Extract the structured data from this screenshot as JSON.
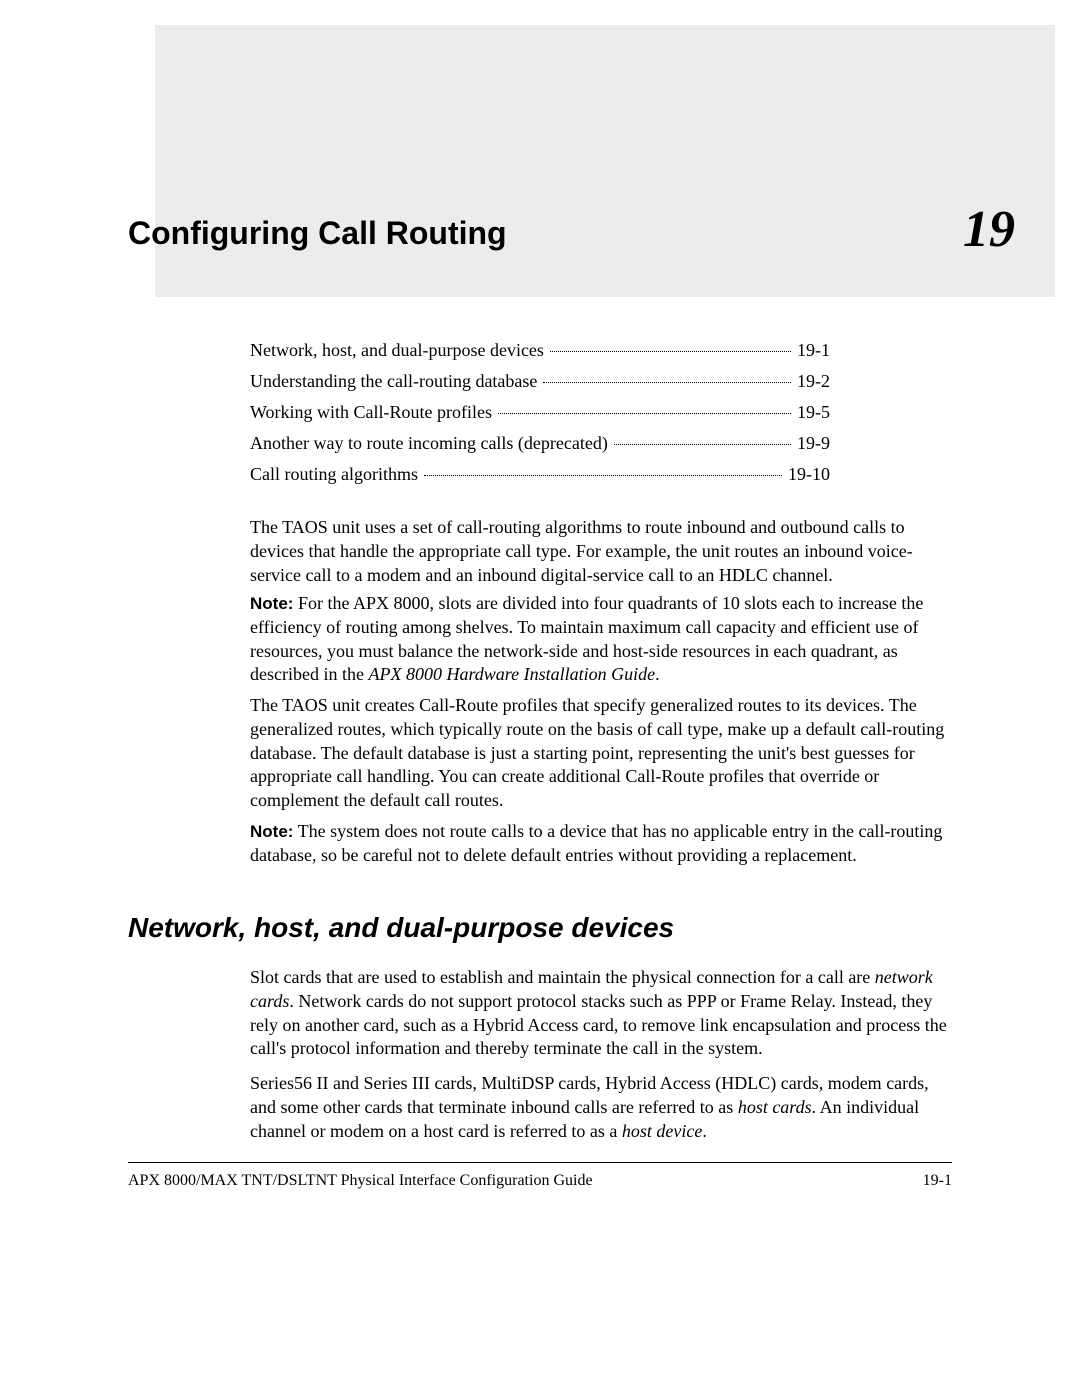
{
  "chapter": {
    "title": "Configuring Call Routing",
    "number": "19"
  },
  "toc": [
    {
      "label": "Network, host, and dual-purpose devices",
      "page": "19-1"
    },
    {
      "label": "Understanding the call-routing database",
      "page": "19-2"
    },
    {
      "label": "Working with Call-Route profiles",
      "page": "19-5"
    },
    {
      "label": "Another way to route incoming calls (deprecated)",
      "page": "19-9"
    },
    {
      "label": "Call routing algorithms",
      "page": "19-10"
    }
  ],
  "paragraphs": {
    "p1": "The TAOS unit uses a set of call-routing algorithms to route inbound and outbound calls to devices that handle the appropriate call type. For example, the unit routes an inbound voice-service call to a modem and an inbound digital-service call to an HDLC channel.",
    "p2_note": "Note:",
    "p2_body": " For the APX 8000, slots are divided into four quadrants of 10 slots each to increase the efficiency of routing among shelves. To maintain maximum call capacity and efficient use of resources, you must balance the network-side and host-side resources in each quadrant, as described in the ",
    "p2_ital": "APX 8000 Hardware Installation Guide",
    "p2_tail": ".",
    "p3": "The TAOS unit creates Call-Route profiles that specify generalized routes to its devices. The generalized routes, which typically route on the basis of call type, make up a default call-routing database. The default database is just a starting point, representing the unit's best guesses for appropriate call handling. You can create additional Call-Route profiles that override or complement the default call routes.",
    "p4_note": "Note:",
    "p4_body": " The system does not route calls to a device that has no applicable entry in the call-routing database, so be careful not to delete default entries without providing a replacement.",
    "p5_a": "Slot cards that are used to establish and maintain the physical connection for a call are ",
    "p5_i1": "network cards",
    "p5_b": ". Network cards do not support protocol stacks such as PPP or Frame Relay. Instead, they rely on another card, such as a Hybrid Access card, to remove link encapsulation and process the call's protocol information and thereby terminate the call in the system.",
    "p6_a": "Series56 II and Series III cards, MultiDSP cards, Hybrid Access (HDLC) cards, modem cards, and some other cards that terminate inbound calls are referred to as ",
    "p6_i1": "host cards",
    "p6_b": ". An individual channel or modem on a host card is referred to as a ",
    "p6_i2": "host device",
    "p6_c": "."
  },
  "section_heading": "Network, host, and dual-purpose devices",
  "footer": {
    "left": "APX 8000/MAX TNT/DSLTNT Physical Interface Configuration Guide",
    "right": "19-1"
  }
}
